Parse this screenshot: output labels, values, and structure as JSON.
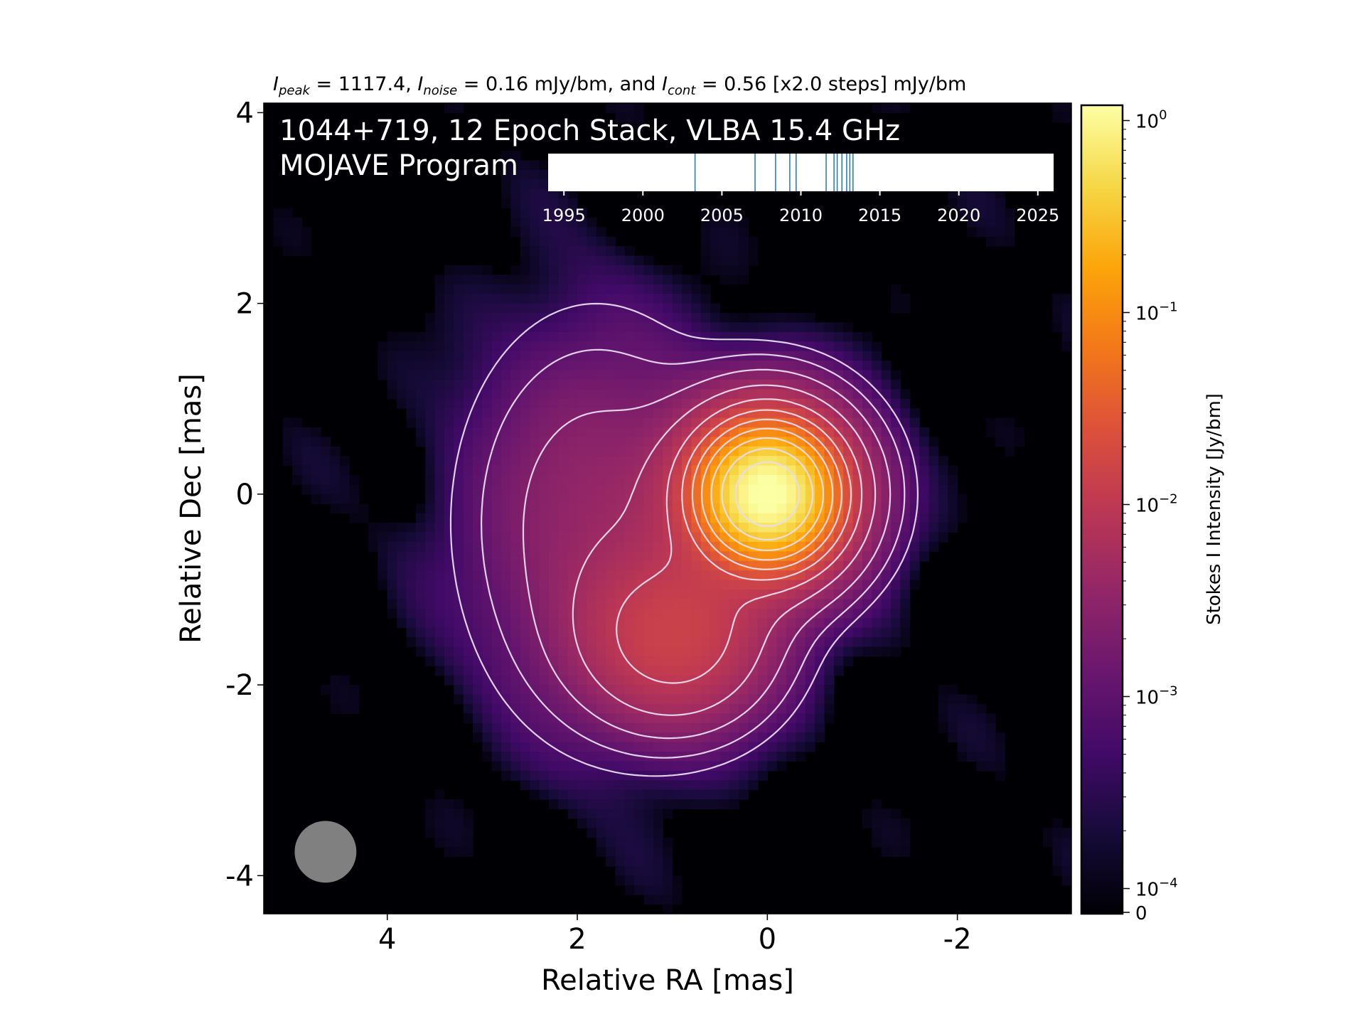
{
  "chart_data": {
    "type": "heatmap",
    "header": {
      "i_peak_symbol": "I",
      "i_peak_sub": "peak",
      "i_peak_text": " = 1117.4, ",
      "i_noise_symbol": "I",
      "i_noise_sub": "noise",
      "i_noise_text": " = 0.16 mJy/bm, and ",
      "i_cont_symbol": "I",
      "i_cont_sub": "cont",
      "i_cont_text": " = 0.56 [x2.0 steps] mJy/bm"
    },
    "title_line1": "1044+719, 12 Epoch Stack, VLBA 15.4 GHz",
    "title_line2": "MOJAVE Program",
    "xlabel": "Relative RA [mas]",
    "ylabel": "Relative Dec [mas]",
    "xlim": [
      5.3,
      -3.2
    ],
    "ylim": [
      -4.4,
      4.1
    ],
    "xticks": [
      4,
      2,
      0,
      -2
    ],
    "xtick_labels": [
      "4",
      "2",
      "0",
      "-2"
    ],
    "yticks": [
      4,
      2,
      0,
      -2,
      -4
    ],
    "ytick_labels": [
      "4",
      "2",
      "0",
      "-2",
      "-4"
    ],
    "colorbar": {
      "label": "Stokes I Intensity [Jy/bm]",
      "scale": "log",
      "colormap": "inferno",
      "ticks": [
        1,
        0.1,
        0.01,
        0.001,
        0.0001,
        0
      ],
      "tick_labels": [
        {
          "base": "10",
          "exp": "0"
        },
        {
          "base": "10",
          "exp": "−1"
        },
        {
          "base": "10",
          "exp": "−2"
        },
        {
          "base": "10",
          "exp": "−3"
        },
        {
          "base": "10",
          "exp": "−4"
        },
        {
          "base": "0",
          "exp": ""
        }
      ]
    },
    "epoch_timeline": {
      "xlim": [
        1994,
        2026
      ],
      "ticks": [
        1995,
        2000,
        2005,
        2010,
        2015,
        2020,
        2025
      ],
      "tick_labels": [
        "1995",
        "2000",
        "2005",
        "2010",
        "2015",
        "2020",
        "2025"
      ],
      "epochs": [
        2003.3,
        2007.1,
        2008.4,
        2009.3,
        2009.7,
        2011.6,
        2012.1,
        2012.3,
        2012.6,
        2012.9,
        2013.1,
        2013.3
      ]
    },
    "source": {
      "core": {
        "ra": 0.0,
        "dec": 0.0,
        "peak_jy_bm": 1.1174
      },
      "jet_knot": {
        "ra": 0.95,
        "dec": -1.5
      },
      "diffuse_halo": {
        "ra": 1.8,
        "dec": -0.3
      }
    },
    "contours": {
      "base_jy_bm": 0.00056,
      "step_factor": 2.0,
      "color": "#e8dcf0"
    },
    "beam": {
      "ra": 4.65,
      "dec": -3.75,
      "major_mas": 0.65,
      "minor_mas": 0.65,
      "color": "#808080"
    },
    "colors": {
      "background": "#000000",
      "contour": "#e8dcf0",
      "timeline_tick": "#1f77b4"
    }
  }
}
